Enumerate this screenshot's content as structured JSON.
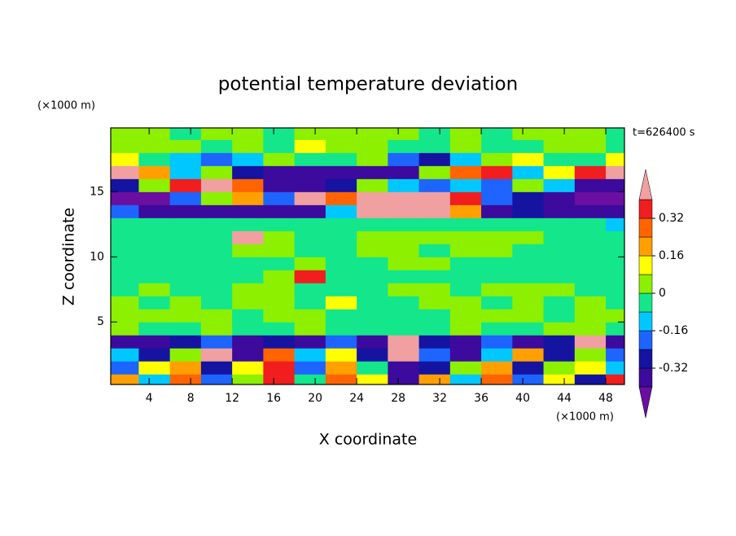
{
  "chart_data": {
    "type": "contour",
    "title": "potential temperature deviation",
    "x_label": "X coordinate",
    "y_label": "Z coordinate",
    "x_unit": "(×1000 m)",
    "y_unit": "(×1000 m)",
    "time_label": "t=626400 s",
    "xlim": [
      0.3,
      49.8
    ],
    "ylim": [
      0.2,
      19.9
    ],
    "xticks": [
      4,
      8,
      12,
      16,
      20,
      24,
      28,
      32,
      36,
      40,
      44,
      48
    ],
    "yticks": [
      5,
      10,
      15
    ],
    "x": [
      1.5,
      4.5,
      7.5,
      10.5,
      13.5,
      16.5,
      19.5,
      22.5,
      25.5,
      28.5,
      31.5,
      34.5,
      37.5,
      40.5,
      43.5,
      46.5,
      49.5
    ],
    "y": [
      0.5,
      1.5,
      2.5,
      3.5,
      4.5,
      5.5,
      6.5,
      7.5,
      8.5,
      9.5,
      10.5,
      11.5,
      12.5,
      13.5,
      14.5,
      15.5,
      16.5,
      17.5,
      18.5,
      19.5
    ],
    "z": [
      [
        0.2,
        -0.12,
        0.28,
        -0.2,
        0.04,
        0.36,
        -0.04,
        0.28,
        0.12,
        -0.36,
        0.2,
        -0.12,
        0.28,
        -0.2,
        0.12,
        -0.28,
        0.36
      ],
      [
        -0.2,
        0.12,
        0.2,
        -0.28,
        0.12,
        0.36,
        -0.2,
        0.2,
        -0.04,
        -0.36,
        -0.28,
        0.04,
        0.2,
        -0.28,
        0.04,
        0.12,
        -0.12
      ],
      [
        -0.12,
        -0.28,
        0.04,
        0.45,
        -0.36,
        0.28,
        -0.12,
        0.12,
        -0.28,
        0.45,
        -0.2,
        -0.36,
        -0.12,
        0.2,
        -0.28,
        0.04,
        -0.2
      ],
      [
        -0.36,
        -0.36,
        -0.28,
        -0.2,
        -0.36,
        -0.28,
        -0.36,
        -0.2,
        -0.36,
        0.45,
        -0.28,
        -0.36,
        -0.2,
        -0.36,
        -0.28,
        0.45,
        -0.36
      ],
      [
        0.04,
        -0.04,
        -0.04,
        0.04,
        -0.04,
        -0.04,
        0.04,
        -0.04,
        -0.04,
        -0.04,
        -0.04,
        0.04,
        -0.04,
        -0.04,
        0.04,
        0.04,
        -0.04
      ],
      [
        0.04,
        0.04,
        0.04,
        0.04,
        -0.04,
        0.04,
        0.04,
        -0.04,
        -0.04,
        -0.04,
        -0.04,
        0.04,
        0.04,
        0.04,
        -0.04,
        0.04,
        0.04
      ],
      [
        0.04,
        -0.04,
        0.04,
        -0.04,
        0.04,
        0.04,
        -0.04,
        0.12,
        -0.04,
        -0.04,
        0.04,
        0.04,
        -0.04,
        0.04,
        -0.04,
        0.04,
        -0.04
      ],
      [
        -0.04,
        0.04,
        -0.04,
        -0.04,
        0.04,
        0.04,
        -0.04,
        -0.04,
        -0.04,
        0.04,
        0.04,
        -0.04,
        0.04,
        0.04,
        0.04,
        -0.04,
        -0.04
      ],
      [
        -0.04,
        -0.04,
        -0.04,
        -0.04,
        -0.04,
        0.04,
        0.36,
        -0.04,
        -0.04,
        -0.04,
        -0.04,
        -0.04,
        -0.04,
        -0.04,
        -0.04,
        -0.04,
        -0.04
      ],
      [
        -0.04,
        -0.04,
        -0.04,
        -0.04,
        -0.04,
        -0.04,
        0.04,
        -0.04,
        -0.04,
        0.04,
        0.04,
        -0.04,
        -0.04,
        -0.04,
        -0.04,
        -0.04,
        -0.04
      ],
      [
        -0.04,
        -0.04,
        -0.04,
        -0.04,
        0.04,
        0.04,
        -0.04,
        -0.04,
        0.04,
        0.04,
        -0.04,
        0.04,
        0.04,
        -0.04,
        -0.04,
        -0.04,
        -0.04
      ],
      [
        -0.04,
        -0.04,
        -0.04,
        -0.04,
        0.45,
        0.04,
        -0.04,
        -0.04,
        0.04,
        0.04,
        0.04,
        0.04,
        0.04,
        0.04,
        -0.04,
        -0.04,
        -0.04
      ],
      [
        -0.04,
        -0.04,
        -0.04,
        -0.04,
        -0.04,
        -0.04,
        -0.04,
        -0.04,
        -0.04,
        -0.04,
        -0.04,
        -0.04,
        -0.04,
        -0.04,
        -0.04,
        -0.04,
        -0.12
      ],
      [
        -0.2,
        -0.36,
        -0.36,
        -0.36,
        -0.36,
        -0.36,
        -0.36,
        -0.12,
        0.45,
        0.45,
        0.45,
        0.2,
        -0.36,
        -0.28,
        -0.36,
        -0.36,
        -0.36
      ],
      [
        -0.45,
        -0.45,
        -0.2,
        0.04,
        0.2,
        -0.2,
        0.45,
        0.28,
        0.45,
        0.45,
        0.45,
        0.36,
        -0.2,
        -0.28,
        -0.36,
        -0.45,
        -0.45
      ],
      [
        -0.28,
        0.04,
        0.36,
        0.45,
        0.28,
        -0.36,
        -0.36,
        -0.28,
        0.04,
        -0.12,
        -0.2,
        -0.12,
        -0.2,
        0.04,
        -0.12,
        -0.36,
        -0.36
      ],
      [
        0.45,
        0.2,
        -0.12,
        0.04,
        -0.28,
        -0.36,
        -0.36,
        -0.36,
        -0.36,
        -0.36,
        0.04,
        0.28,
        0.36,
        -0.12,
        0.12,
        0.36,
        0.45
      ],
      [
        0.12,
        -0.04,
        -0.12,
        -0.2,
        -0.12,
        0.04,
        -0.04,
        -0.04,
        0.04,
        -0.2,
        -0.28,
        -0.12,
        0.04,
        0.12,
        -0.04,
        -0.04,
        0.12
      ],
      [
        0.04,
        0.04,
        0.04,
        -0.04,
        0.04,
        -0.04,
        0.12,
        0.04,
        0.04,
        -0.04,
        -0.04,
        0.04,
        -0.04,
        -0.04,
        0.04,
        0.04,
        -0.04
      ],
      [
        0.04,
        0.04,
        -0.04,
        0.04,
        0.04,
        -0.04,
        0.04,
        0.04,
        0.04,
        0.04,
        -0.04,
        0.04,
        -0.04,
        0.04,
        0.04,
        0.04,
        -0.04
      ]
    ],
    "levels": [
      -0.4,
      -0.32,
      -0.24,
      -0.16,
      -0.08,
      0,
      0.08,
      0.16,
      0.24,
      0.32,
      0.4
    ],
    "colors": [
      "#6a0fa0",
      "#3c0a9c",
      "#1414a0",
      "#1e64ff",
      "#00c8ff",
      "#14e68c",
      "#8cf000",
      "#ffff00",
      "#ffa000",
      "#ff6400",
      "#f01e1e",
      "#f0a0a0"
    ],
    "colorbar_ticks": [
      0.32,
      0.16,
      0,
      -0.16,
      -0.32
    ]
  }
}
